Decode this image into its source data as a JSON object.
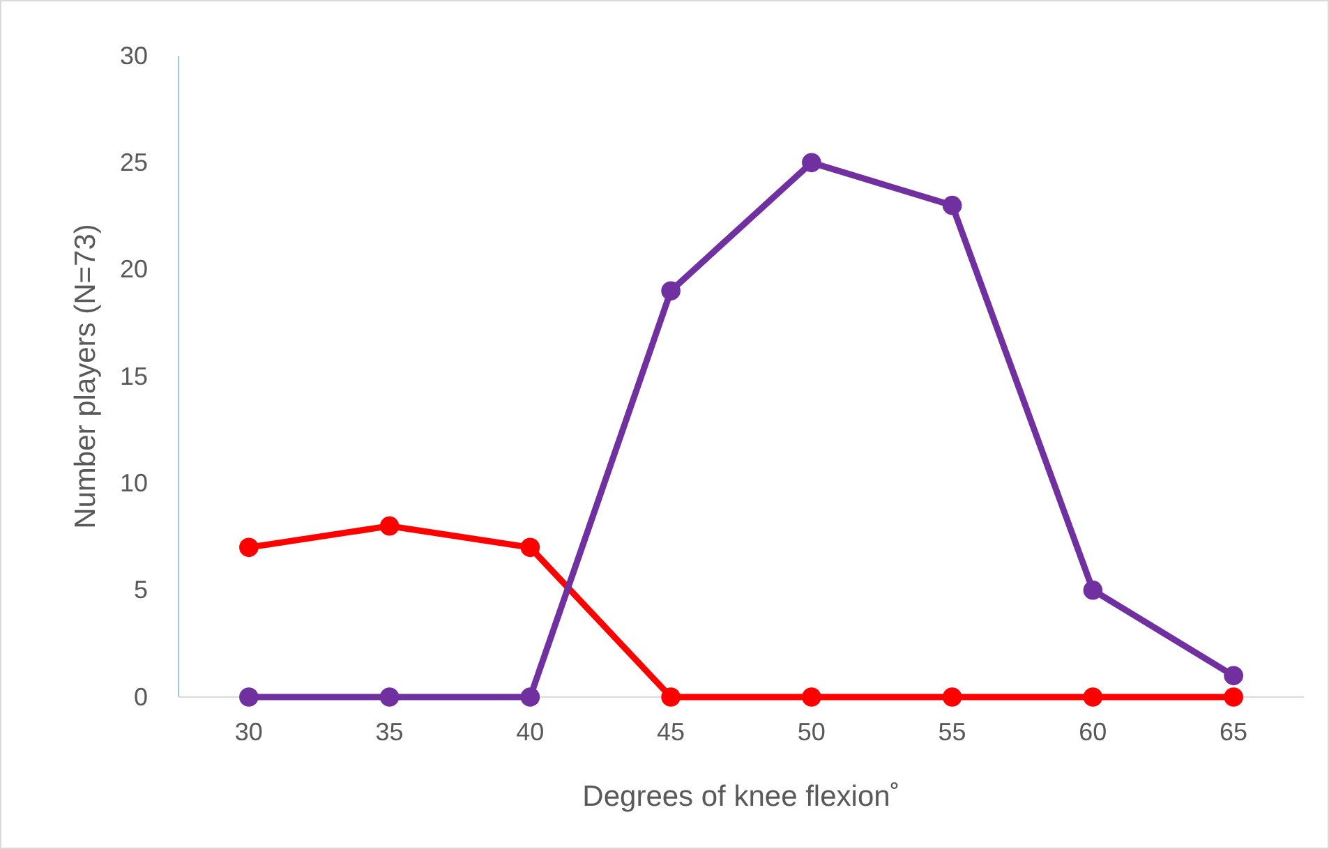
{
  "chart_data": {
    "type": "line",
    "xlabel": "Degrees of knee flexion˚",
    "ylabel": "Number players  (N=73)",
    "categories": [
      "30",
      "35",
      "40",
      "45",
      "50",
      "55",
      "60",
      "65"
    ],
    "series": [
      {
        "color": "#ff0000",
        "values": [
          7,
          8,
          7,
          0,
          0,
          0,
          0,
          0
        ]
      },
      {
        "color": "#7030a0",
        "values": [
          0,
          0,
          0,
          19,
          25,
          23,
          5,
          1
        ]
      }
    ],
    "ylim": [
      0,
      30
    ],
    "yticks": [
      0,
      5,
      10,
      15,
      20,
      25,
      30
    ],
    "grid": false,
    "marker": "circle",
    "line_style": "solid"
  }
}
